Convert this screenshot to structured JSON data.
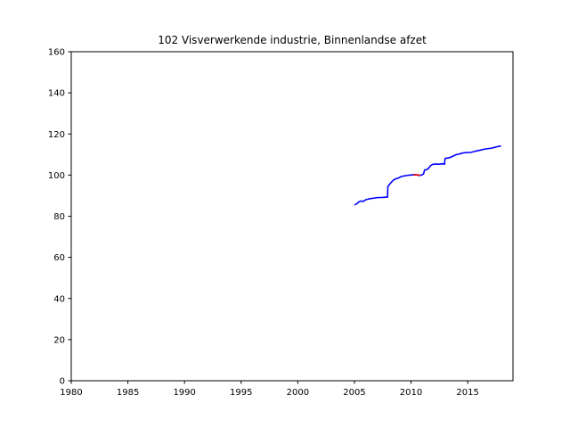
{
  "chart_data": {
    "type": "line",
    "title": "102 Visverwerkende industrie, Binnenlandse afzet",
    "xlabel": "",
    "ylabel": "",
    "xlim": [
      1980,
      2019
    ],
    "ylim": [
      0,
      160
    ],
    "xticks": [
      1980,
      1985,
      1990,
      1995,
      2000,
      2005,
      2010,
      2015
    ],
    "yticks": [
      0,
      20,
      40,
      60,
      80,
      100,
      120,
      140,
      160
    ],
    "grid": false,
    "colors": {
      "main": "#0000ff",
      "accent": "#ff0000",
      "axis": "#000000"
    },
    "series": [
      {
        "color": "#0000ff",
        "x": [
          2005.0,
          2005.2,
          2005.4,
          2005.6,
          2005.8,
          2006.0,
          2006.2,
          2006.4,
          2006.6,
          2006.8,
          2007.0,
          2007.2,
          2007.4,
          2007.6,
          2007.8,
          2007.92,
          2007.95,
          2008.1,
          2008.3,
          2008.5,
          2008.7,
          2008.9,
          2009.1,
          2009.3,
          2009.5,
          2009.7,
          2009.9,
          2010.1,
          2010.3,
          2010.5,
          2010.7,
          2010.9,
          2011.1,
          2011.2,
          2011.3,
          2011.5,
          2011.7,
          2011.9,
          2012.0,
          2012.2,
          2012.4,
          2012.6,
          2012.8,
          2012.95,
          2013.0,
          2013.2,
          2013.4,
          2013.6,
          2013.8,
          2014.0,
          2014.2,
          2014.4,
          2014.6,
          2014.8,
          2015.0,
          2015.2,
          2015.4,
          2015.6,
          2015.8,
          2016.0,
          2016.2,
          2016.4,
          2016.6,
          2016.8,
          2017.0,
          2017.2,
          2017.4,
          2017.6,
          2017.8,
          2017.95
        ],
        "y": [
          85.5,
          86.0,
          87.0,
          87.4,
          87.2,
          88.0,
          88.3,
          88.6,
          88.7,
          88.9,
          89.0,
          89.1,
          89.1,
          89.2,
          89.3,
          89.3,
          94.5,
          95.5,
          96.8,
          97.8,
          98.3,
          98.6,
          99.2,
          99.5,
          99.7,
          99.9,
          100.0,
          100.1,
          100.2,
          100.1,
          99.8,
          100.0,
          100.5,
          102.5,
          102.6,
          103.0,
          104.5,
          105.2,
          105.3,
          105.4,
          105.3,
          105.4,
          105.5,
          105.3,
          108.0,
          108.3,
          108.5,
          108.9,
          109.5,
          110.0,
          110.2,
          110.5,
          110.8,
          110.9,
          111.0,
          111.0,
          111.2,
          111.5,
          111.8,
          112.0,
          112.2,
          112.5,
          112.7,
          112.9,
          113.0,
          113.2,
          113.5,
          113.8,
          114.0,
          114.2
        ]
      },
      {
        "color": "#ff0000",
        "x": [
          2010.2,
          2010.4,
          2010.6,
          2010.8
        ],
        "y": [
          100.2,
          100.2,
          100.1,
          99.9
        ]
      }
    ]
  }
}
